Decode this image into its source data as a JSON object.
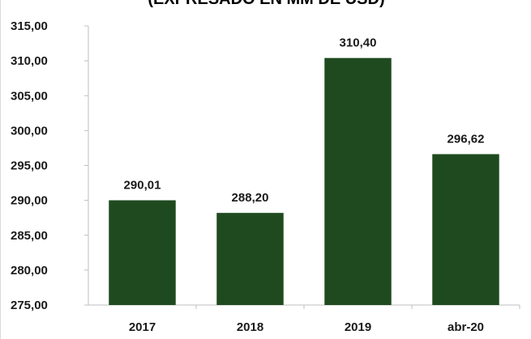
{
  "chart_data": {
    "type": "bar",
    "title": "(EXPRESADO EN MM DE USD)",
    "xlabel": "",
    "ylabel": "",
    "categories": [
      "2017",
      "2018",
      "2019",
      "abr-20"
    ],
    "values": [
      290.01,
      288.2,
      310.4,
      296.62
    ],
    "data_labels": [
      "290,01",
      "288,20",
      "310,40",
      "296,62"
    ],
    "ylim": [
      275,
      315
    ],
    "yticks": [
      275,
      280,
      285,
      290,
      295,
      300,
      305,
      310,
      315
    ],
    "ytick_labels": [
      "275,00",
      "280,00",
      "285,00",
      "290,00",
      "295,00",
      "300,00",
      "305,00",
      "310,00",
      "315,00"
    ],
    "grid": false,
    "legend": "none",
    "bar_color": "#1f4a1f",
    "axis_color": "#bfbfbf"
  }
}
